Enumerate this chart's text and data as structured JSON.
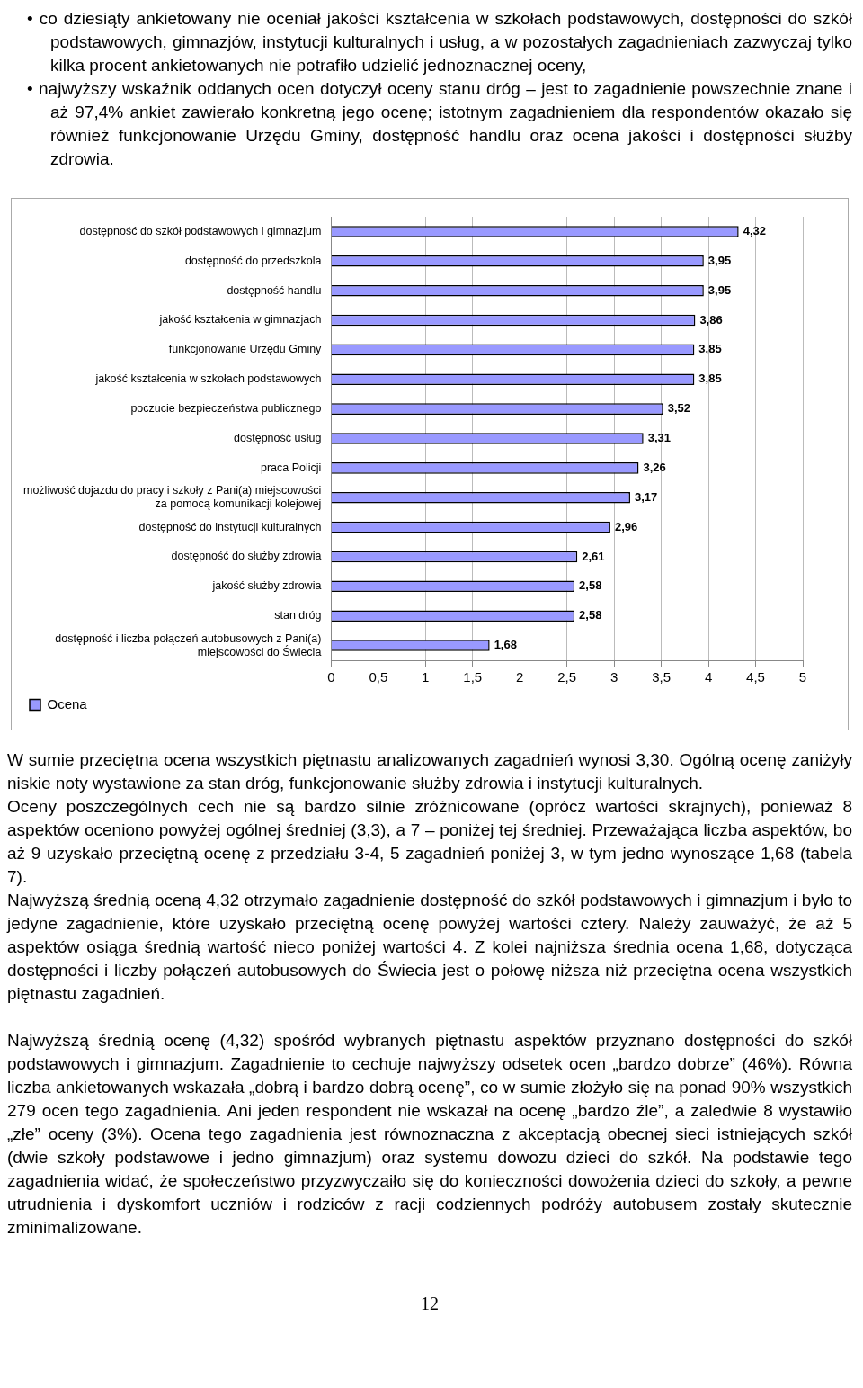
{
  "chart_data": {
    "type": "bar",
    "orientation": "horizontal",
    "categories": [
      "dostępność do szkół podstawowych i gimnazjum",
      "dostępność do przedszkola",
      "dostępność handlu",
      "jakość kształcenia w gimnazjach",
      "funkcjonowanie Urzędu Gminy",
      "jakość kształcenia w szkołach podstawowych",
      "poczucie bezpieczeństwa publicznego",
      "dostępność usług",
      "praca Policji",
      "możliwość dojazdu do pracy i szkoły z Pani(a) miejscowości za pomocą komunikacji kolejowej",
      "dostępność do instytucji kulturalnych",
      "dostępność do służby zdrowia",
      "jakość służby zdrowia",
      "stan dróg",
      "dostępność i liczba połączeń autobusowych z Pani(a) miejscowości do Świecia"
    ],
    "series": [
      {
        "name": "Ocena",
        "color": "#9999ff",
        "values": [
          4.32,
          3.95,
          3.95,
          3.86,
          3.85,
          3.85,
          3.52,
          3.31,
          3.26,
          3.17,
          2.96,
          2.61,
          2.58,
          2.58,
          1.68
        ],
        "value_labels": [
          "4,32",
          "3,95",
          "3,95",
          "3,86",
          "3,85",
          "3,85",
          "3,52",
          "3,31",
          "3,26",
          "3,17",
          "2,96",
          "2,61",
          "2,58",
          "2,58",
          "1,68"
        ]
      }
    ],
    "xlim": [
      0,
      5
    ],
    "xticks": [
      0,
      {
        "value": 0.5,
        "label": "0,5"
      },
      1,
      {
        "value": 1.5,
        "label": "1,5"
      },
      2,
      {
        "value": 2.5,
        "label": "2,5"
      },
      3,
      {
        "value": 3.5,
        "label": "3,5"
      },
      4,
      {
        "value": 4.5,
        "label": "4,5"
      },
      5
    ],
    "grid": "x",
    "legend": "bottom left",
    "annotations": [
      "• co dziesiąty ankietowany nie oceniał jakości kształcenia w szkołach podstawowych, dostępności do szkół podstawowych, gimnazjów, instytucji kulturalnych i usług, a w pozostałych zagadnieniach zazwyczaj tylko kilka procent ankietowanych nie potrafiło udzielić jednoznacznej oceny,",
      "• najwyższy wskaźnik oddanych ocen dotyczył oceny stanu dróg – jest to zagadnienie powszechnie znane i aż 97,4% ankiet zawierało konkretną jego ocenę; istotnym zagadnieniem dla respondentów okazało się również funkcjonowanie Urzędu Gminy, dostępność handlu oraz ocena jakości i dostępności służby zdrowia.",
      "W sumie przeciętna ocena wszystkich piętnastu analizowanych zagadnień wynosi 3,30. Ogólną ocenę zaniżyły niskie noty wystawione za stan dróg, funkcjonowanie służby zdrowia i instytucji kulturalnych.",
      "Oceny poszczególnych cech nie są bardzo silnie zróżnicowane (oprócz wartości skrajnych), ponieważ 8 aspektów oceniono powyżej ogólnej średniej (3,3), a 7 – poniżej tej średniej. Przeważająca liczba aspektów, bo aż 9 uzyskało przeciętną ocenę z przedziału 3-4, 5 zagadnień poniżej 3, w tym jedno wynoszące 1,68 (tabela 7).",
      "Najwyższą średnią oceną 4,32 otrzymało zagadnienie dostępność do szkół podstawowych i gimnazjum i było to jedyne zagadnienie, które uzyskało przeciętną ocenę powyżej wartości cztery. Należy zauważyć, że aż 5 aspektów osiąga średnią wartość nieco poniżej wartości 4. Z kolei najniższa średnia ocena 1,68, dotycząca dostępności i liczby połączeń autobusowych do Świecia jest o połowę niższa niż przeciętna ocena wszystkich piętnastu zagadnień.",
      "Najwyższą średnią ocenę (4,32) spośród wybranych piętnastu aspektów przyznano dostępności do szkół podstawowych i gimnazjum. Zagadnienie to cechuje najwyższy odsetek ocen „bardzo dobrze” (46%). Równa liczba ankietowanych wskazała „dobrą i bardzo dobrą ocenę”, co w sumie złożyło się na ponad 90% wszystkich 279 ocen tego zagadnienia. Ani jeden respondent nie wskazał na ocenę „bardzo źle”, a zaledwie 8 wystawiło „złe” oceny (3%). Ocena tego zagadnienia jest równoznaczna z akceptacją obecnej sieci istniejących szkół (dwie szkoły podstawowe i jedno gimnazjum) oraz systemu dowozu dzieci do szkół. Na podstawie tego zagadnienia widać, że społeczeństwo przyzwyczaiło się do konieczności dowożenia dzieci do szkoły, a pewne utrudnienia i dyskomfort uczniów i rodziców z racji codziennych podróży autobusem zostały skutecznie zminimalizowane.",
      "12"
    ]
  }
}
